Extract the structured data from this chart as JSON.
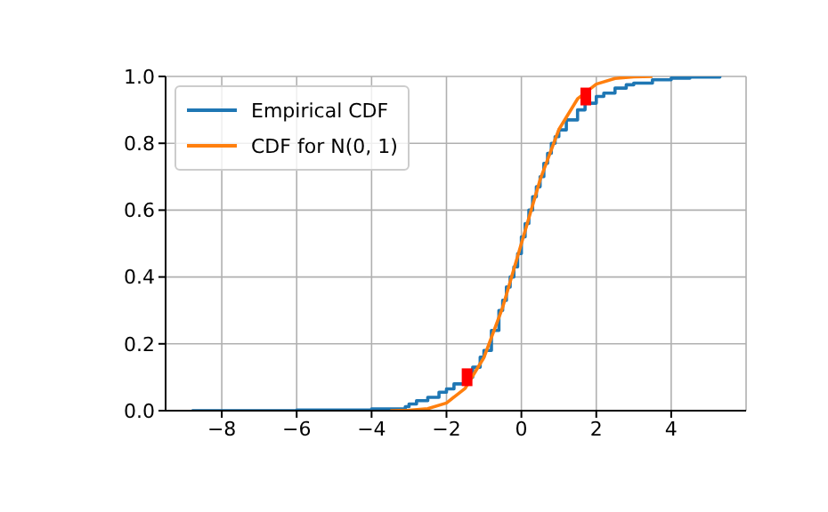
{
  "chart_data": {
    "type": "line",
    "xlim": [
      -9.5,
      6.0
    ],
    "xticks": [
      {
        "value": -8,
        "label": "−8"
      },
      {
        "value": -6,
        "label": "−6"
      },
      {
        "value": -4,
        "label": "−4"
      },
      {
        "value": -2,
        "label": "−2"
      },
      0,
      2,
      4
    ],
    "ylim": [
      0,
      1
    ],
    "yticks": [
      {
        "value": 0,
        "label": "0.0"
      },
      {
        "value": 0.2,
        "label": "0.2"
      },
      {
        "value": 0.4,
        "label": "0.4"
      },
      {
        "value": 0.6,
        "label": "0.6"
      },
      {
        "value": 0.8,
        "label": "0.8"
      },
      {
        "value": 1,
        "label": "1.0"
      }
    ],
    "grid": true,
    "legend": "top left",
    "marker": "none",
    "line_style": "solid",
    "series": [
      {
        "name": "Empirical CDF",
        "type": "step",
        "color": "#1f77b4",
        "x": [
          -8.8,
          -6,
          -4,
          -3.1,
          -3,
          -2.8,
          -2.5,
          -2.2,
          -2,
          -1.8,
          -1.5,
          -1.3,
          -1.1,
          -1,
          -0.8,
          -0.6,
          -0.5,
          -0.4,
          -0.3,
          -0.2,
          -0.1,
          0,
          0.1,
          0.2,
          0.3,
          0.4,
          0.5,
          0.6,
          0.7,
          0.8,
          0.9,
          1,
          1.2,
          1.5,
          1.7,
          2,
          2.2,
          2.5,
          2.8,
          3,
          3.5,
          4,
          4.5,
          5.3
        ],
        "values": [
          0,
          0.002,
          0.005,
          0.012,
          0.02,
          0.03,
          0.04,
          0.055,
          0.065,
          0.08,
          0.1,
          0.13,
          0.16,
          0.18,
          0.24,
          0.3,
          0.33,
          0.37,
          0.4,
          0.43,
          0.47,
          0.52,
          0.56,
          0.6,
          0.64,
          0.67,
          0.7,
          0.74,
          0.77,
          0.8,
          0.82,
          0.84,
          0.87,
          0.9,
          0.92,
          0.94,
          0.95,
          0.965,
          0.975,
          0.98,
          0.99,
          0.995,
          0.998,
          1
        ]
      },
      {
        "name": "CDF for N(0, 1)",
        "type": "line",
        "color": "#ff7f0e",
        "x": [
          -3.5,
          -3,
          -2.5,
          -2,
          -1.5,
          -1,
          -0.5,
          0,
          0.5,
          1,
          1.5,
          2,
          2.5,
          3,
          3.5
        ],
        "values": [
          0,
          0.001,
          0.006,
          0.023,
          0.067,
          0.159,
          0.309,
          0.5,
          0.691,
          0.841,
          0.933,
          0.977,
          0.994,
          0.999,
          1
        ]
      },
      {
        "type": "scatter",
        "marker": "square",
        "color": "#ff0000",
        "x": [
          -1.45,
          1.72
        ],
        "values": [
          0.1,
          0.94
        ]
      }
    ]
  }
}
